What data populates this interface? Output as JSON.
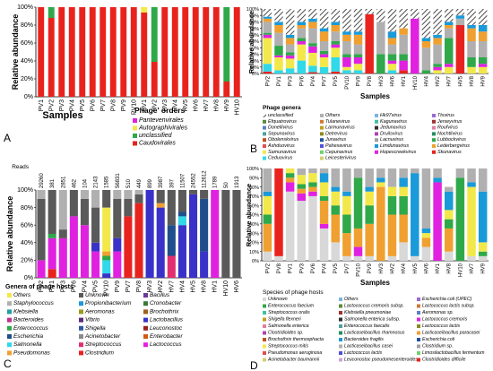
{
  "panel_labels": [
    "A",
    "B",
    "C",
    "D"
  ],
  "colors": {
    "unclassified": "#d8d8d8",
    "hatch": "#4a4a4a"
  },
  "chart_data": [
    {
      "panel": "A",
      "type": "bar",
      "stacked": true,
      "ylabel": "Relative abundance",
      "xlabel": "Samples",
      "yticks": [
        "0%",
        "20%",
        "40%",
        "60%",
        "80%",
        "100%"
      ],
      "ylim": [
        0,
        100
      ],
      "categories": [
        "PV1",
        "PV2",
        "PV3",
        "PV4",
        "PV5",
        "PV6",
        "PV7",
        "PV8",
        "PV9",
        "PV10",
        "HV1",
        "HV2",
        "HV3",
        "HV4",
        "HV5",
        "HV6",
        "HV7",
        "HV8",
        "HV9",
        "HV10"
      ],
      "legend_title": "Phage' orders",
      "series": [
        {
          "name": "Caudovirales",
          "color": "#e8231e",
          "values": [
            100,
            88,
            100,
            100,
            100,
            100,
            100,
            100,
            100,
            100,
            94,
            39,
            100,
            100,
            100,
            100,
            100,
            100,
            17,
            100
          ]
        },
        {
          "name": "unclassified",
          "color": "#2fa84a",
          "values": [
            0,
            12,
            0,
            0,
            0,
            0,
            0,
            0,
            0,
            0,
            0,
            61,
            0,
            0,
            0,
            0,
            0,
            0,
            83,
            0
          ]
        },
        {
          "name": "Autographivirales",
          "color": "#f2e84a",
          "values": [
            0,
            0,
            0,
            0,
            0,
            0,
            0,
            0,
            0,
            0,
            6,
            0,
            0,
            0,
            0,
            0,
            0,
            0,
            0,
            0
          ]
        },
        {
          "name": "Pantevenvirales",
          "color": "#e022e0",
          "values": [
            0,
            0,
            0,
            0,
            0,
            0,
            0,
            0,
            0,
            0,
            0,
            0,
            0,
            0,
            0,
            0,
            0,
            0,
            0,
            0
          ]
        }
      ]
    },
    {
      "panel": "B",
      "type": "bar",
      "stacked": true,
      "ylabel": "Relative abundance",
      "xlabel": "Samples",
      "yticks": [
        "0%",
        "10%",
        "20%",
        "30%",
        "40%",
        "50%",
        "60%",
        "70%",
        "80%",
        "90%",
        "100%"
      ],
      "ylim": [
        0,
        100
      ],
      "categories": [
        "PV2",
        "PV1",
        "PV3",
        "PV6",
        "PV4",
        "PV7",
        "PV5",
        "PV10",
        "PV9",
        "PV8",
        "HV3",
        "HV6",
        "HV1",
        "HV10",
        "HV4",
        "HV2",
        "HV7",
        "HV5",
        "HV8",
        "HV9"
      ],
      "legend_title": "Phage genera",
      "legend": [
        "unclassified",
        "Others",
        "Hk97virus",
        "Ttsvirus",
        "Efquatrovirus",
        "Tulanevirus",
        "Kagunavirus",
        "Jerseyvirus",
        "Donellivirus",
        "Larmunavirus",
        "Jedunavirus",
        "Roufvirus",
        "Sepunavirus",
        "Detrevirus",
        "Druilsvirus",
        "Nochtlivirus",
        "Obolenskvirus",
        "Junavirus",
        "Lacnuvirus",
        "Lubbockvirus",
        "Ashduovirus",
        "Pahexavirus",
        "Limdunavirus",
        "Lederbergvirus",
        "Samunavirus",
        "Cepunavirus",
        "Hopescreekvirus",
        "Skunavirus",
        "Ceduovirus",
        "Leicesterivirus"
      ],
      "series": [
        {
          "name": "Skunavirus",
          "color": "#e8231e",
          "values": [
            3,
            0,
            0,
            0,
            2,
            0,
            3,
            0,
            0,
            92,
            0,
            0,
            5,
            0,
            0,
            0,
            0,
            75,
            0,
            0
          ]
        },
        {
          "name": "Ceduovirus",
          "color": "#30d8e8",
          "values": [
            12,
            5,
            8,
            20,
            10,
            10,
            22,
            5,
            5,
            0,
            0,
            5,
            0,
            0,
            0,
            0,
            0,
            0,
            0,
            0
          ]
        },
        {
          "name": "Samunavirus",
          "color": "#f2e84a",
          "values": [
            40,
            20,
            15,
            25,
            20,
            15,
            15,
            5,
            10,
            0,
            0,
            10,
            0,
            0,
            0,
            5,
            10,
            0,
            10,
            10
          ]
        },
        {
          "name": "Hopescreekvirus",
          "color": "#e022e0",
          "values": [
            5,
            3,
            5,
            5,
            10,
            5,
            5,
            15,
            10,
            0,
            0,
            5,
            15,
            85,
            0,
            5,
            5,
            0,
            0,
            5
          ]
        },
        {
          "name": "Lubbockvirus",
          "color": "#2fa84a",
          "values": [
            3,
            15,
            5,
            5,
            5,
            5,
            5,
            5,
            5,
            0,
            30,
            10,
            10,
            0,
            5,
            5,
            40,
            0,
            15,
            10
          ]
        },
        {
          "name": "Others",
          "color": "#b0b0b0",
          "values": [
            17,
            20,
            12,
            15,
            23,
            15,
            15,
            20,
            15,
            0,
            50,
            15,
            30,
            0,
            35,
            30,
            15,
            10,
            25,
            25
          ]
        },
        {
          "name": "Lederbergvirus",
          "color": "#f0a030",
          "values": [
            5,
            12,
            10,
            5,
            10,
            15,
            10,
            10,
            15,
            0,
            0,
            10,
            10,
            0,
            10,
            10,
            5,
            0,
            20,
            15
          ]
        },
        {
          "name": "Limdunavirus",
          "color": "#1a9ad8",
          "values": [
            3,
            5,
            5,
            5,
            5,
            5,
            5,
            5,
            5,
            0,
            0,
            10,
            0,
            0,
            5,
            5,
            5,
            5,
            5,
            10
          ]
        },
        {
          "name": "unclassified",
          "color": "#d8d8d8",
          "values": [
            12,
            20,
            40,
            20,
            15,
            30,
            20,
            35,
            35,
            8,
            20,
            35,
            30,
            15,
            45,
            40,
            20,
            10,
            25,
            25
          ]
        }
      ]
    },
    {
      "panel": "C",
      "type": "bar",
      "stacked": true,
      "ylabel": "Relative abundance",
      "yticks": [
        "0%",
        "20%",
        "40%",
        "60%",
        "80%",
        "100%"
      ],
      "ylim": [
        0,
        100
      ],
      "reads_label": "Reads",
      "reads": [
        "29260",
        "381",
        "2851",
        "462",
        "104",
        "2143",
        "1585",
        "56831",
        "510",
        "449",
        "899",
        "3987",
        "397",
        "11507",
        "24552",
        "112612",
        "1789",
        "50",
        "1913"
      ],
      "categories": [
        "PV2",
        "PV1",
        "PV3",
        "PV6",
        "PV4",
        "PV5",
        "PV10",
        "PV9",
        "PV7",
        "PV8",
        "HV3",
        "HV2",
        "HV7",
        "HV4",
        "HV5",
        "HV8",
        "HV1",
        "HV10",
        "HV6"
      ],
      "legend_title": "Genera of phage hosts",
      "legend": [
        "Others",
        "Unknown",
        "Bacillus",
        "Staphylococcus",
        "Propionibacterium",
        "Cronobacter",
        "Klebsiella",
        "Aeromonas",
        "Brochothrix",
        "Bacteroides",
        "Vibrio",
        "Lactobacillus",
        "Enterococcus",
        "Shigella",
        "Leuconostoc",
        "Escherichia",
        "Acinetobacter",
        "Enterobacter",
        "Salmonella",
        "Streptococcus",
        "Lactococcus",
        "Pseudomonas",
        "Clostridium"
      ],
      "series": [
        {
          "name": "Clostridium",
          "color": "#e8231e",
          "values": [
            0,
            10,
            0,
            0,
            0,
            0,
            0,
            0,
            70,
            85,
            0,
            0,
            0,
            0,
            0,
            0,
            0,
            0,
            0
          ]
        },
        {
          "name": "Lactococcus",
          "color": "#e022e0",
          "values": [
            20,
            35,
            45,
            70,
            60,
            30,
            0,
            30,
            0,
            0,
            0,
            0,
            0,
            0,
            0,
            0,
            100,
            0,
            0
          ]
        },
        {
          "name": "Streptococcus",
          "color": "#e03070",
          "values": [
            0,
            0,
            0,
            0,
            0,
            0,
            0,
            0,
            0,
            0,
            0,
            0,
            25,
            0,
            0,
            0,
            0,
            0,
            0
          ]
        },
        {
          "name": "Lactobacillus",
          "color": "#3a32c8",
          "values": [
            0,
            0,
            0,
            0,
            0,
            10,
            5,
            15,
            0,
            0,
            100,
            80,
            0,
            60,
            95,
            30,
            0,
            0,
            0
          ]
        },
        {
          "name": "Salmonella",
          "color": "#30d8e8",
          "values": [
            0,
            0,
            0,
            0,
            0,
            0,
            15,
            0,
            0,
            0,
            0,
            0,
            0,
            10,
            0,
            0,
            0,
            0,
            0
          ]
        },
        {
          "name": "Escherichia",
          "color": "#1f4e8c",
          "values": [
            0,
            0,
            0,
            0,
            0,
            0,
            0,
            0,
            0,
            0,
            0,
            0,
            35,
            5,
            0,
            60,
            0,
            0,
            0
          ]
        },
        {
          "name": "Enterococcus",
          "color": "#2fa84a",
          "values": [
            0,
            5,
            0,
            0,
            0,
            0,
            5,
            0,
            0,
            0,
            0,
            0,
            0,
            0,
            0,
            0,
            0,
            0,
            0
          ]
        },
        {
          "name": "Pseudomonas",
          "color": "#f0a030",
          "values": [
            0,
            0,
            0,
            0,
            0,
            0,
            5,
            0,
            0,
            0,
            0,
            5,
            0,
            0,
            0,
            0,
            0,
            0,
            0
          ]
        },
        {
          "name": "Others",
          "color": "#f2e84a",
          "values": [
            0,
            0,
            0,
            0,
            0,
            0,
            50,
            0,
            0,
            0,
            0,
            0,
            0,
            0,
            0,
            0,
            0,
            0,
            0
          ]
        },
        {
          "name": "Unknown",
          "color": "#5a5a5a",
          "values": [
            70,
            50,
            10,
            30,
            30,
            40,
            20,
            45,
            20,
            10,
            0,
            15,
            40,
            25,
            5,
            10,
            0,
            100,
            100
          ]
        },
        {
          "name": "Staphylococcus",
          "color": "#b0b0b0",
          "values": [
            10,
            0,
            45,
            0,
            10,
            20,
            0,
            10,
            10,
            5,
            0,
            0,
            0,
            0,
            0,
            0,
            0,
            0,
            0
          ]
        }
      ]
    },
    {
      "panel": "D",
      "type": "bar",
      "stacked": true,
      "ylabel": "Relative abundance",
      "xlabel": "Samples",
      "yticks": [
        "0%",
        "10%",
        "20%",
        "30%",
        "40%",
        "50%",
        "60%",
        "70%",
        "80%",
        "90%",
        "100%"
      ],
      "ylim": [
        0,
        100
      ],
      "categories": [
        "PV2",
        "PV8",
        "PV1",
        "PV3",
        "PV6",
        "PV4",
        "PV5",
        "PV7",
        "PV10",
        "PV9",
        "HV3",
        "HV2",
        "HV4",
        "HV5",
        "HV6",
        "HV1",
        "HV8",
        "HV10",
        "HV7",
        "HV9"
      ],
      "legend_title": "Species of phage hosts",
      "legend": [
        "Unknown",
        "Others",
        "Escherichia coli (UPEC)",
        "Enterococcus faecium",
        "Lactococcus cremoris subsp.",
        "Lactococcus lactis subsp.",
        "Streptococcus oralis",
        "Klebsiella pneumoniae",
        "Aeromonas sp.",
        "Shigella flexneri",
        "Salmonella enterica subsp.",
        "Lactococcus cremoris",
        "Salmonella enterica",
        "Enterococcus faecalis",
        "Lactococcus lactis",
        "Clostridioides sp.",
        "Lacticaseibacillus rhamnosus",
        "Lacticaseibacillus paracasei",
        "Brochothrix thermosphacta",
        "Bacteroides fragilis",
        "Escherichia coli",
        "Streptococcus mitis",
        "Lacticaseibacillus casei",
        "Clostridium sp.",
        "Pseudomonas aeruginosa",
        "Lactococcus lactis",
        "Limosilactobacillus fermentum",
        "Acinetobacter baumannii",
        "Leuconostoc pseudomesenteroides",
        "Clostridioides difficile"
      ],
      "series": [
        {
          "name": "Unknown",
          "color": "#d8d8d8",
          "values": [
            10,
            5,
            75,
            65,
            70,
            35,
            20,
            5,
            5,
            5,
            0,
            5,
            20,
            5,
            15,
            0,
            10,
            0,
            5,
            5
          ]
        },
        {
          "name": "Clostridioides difficile",
          "color": "#e8231e",
          "values": [
            0,
            95,
            0,
            0,
            0,
            0,
            0,
            0,
            0,
            0,
            0,
            0,
            0,
            0,
            0,
            0,
            0,
            0,
            0,
            0
          ]
        },
        {
          "name": "Lactococcus cremoris",
          "color": "#e022e0",
          "values": [
            0,
            0,
            10,
            8,
            5,
            5,
            0,
            0,
            10,
            0,
            0,
            0,
            0,
            0,
            0,
            85,
            0,
            0,
            0,
            0
          ]
        },
        {
          "name": "Lacticaseibacillus paracasei",
          "color": "#f0a030",
          "values": [
            30,
            0,
            5,
            5,
            5,
            25,
            30,
            25,
            20,
            35,
            80,
            45,
            30,
            0,
            10,
            0,
            25,
            0,
            0,
            0
          ]
        },
        {
          "name": "Enterococcus faecium",
          "color": "#2fa84a",
          "values": [
            10,
            0,
            5,
            5,
            5,
            5,
            10,
            20,
            55,
            20,
            0,
            20,
            20,
            0,
            0,
            0,
            10,
            90,
            0,
            5
          ]
        },
        {
          "name": "Streptococcus mitis",
          "color": "#f2e84a",
          "values": [
            20,
            0,
            5,
            10,
            10,
            15,
            15,
            20,
            0,
            15,
            5,
            10,
            10,
            0,
            5,
            0,
            10,
            0,
            75,
            10
          ]
        },
        {
          "name": "Bacteroides fragilis",
          "color": "#1a9ad8",
          "values": [
            5,
            0,
            0,
            0,
            0,
            10,
            5,
            5,
            0,
            5,
            5,
            0,
            10,
            90,
            5,
            5,
            20,
            0,
            5,
            55
          ]
        },
        {
          "name": "Lacticaseibacillus casei",
          "color": "#b0b0b0",
          "values": [
            25,
            0,
            0,
            7,
            5,
            5,
            20,
            25,
            10,
            20,
            10,
            20,
            10,
            5,
            65,
            10,
            5,
            10,
            15,
            25
          ]
        }
      ]
    }
  ]
}
